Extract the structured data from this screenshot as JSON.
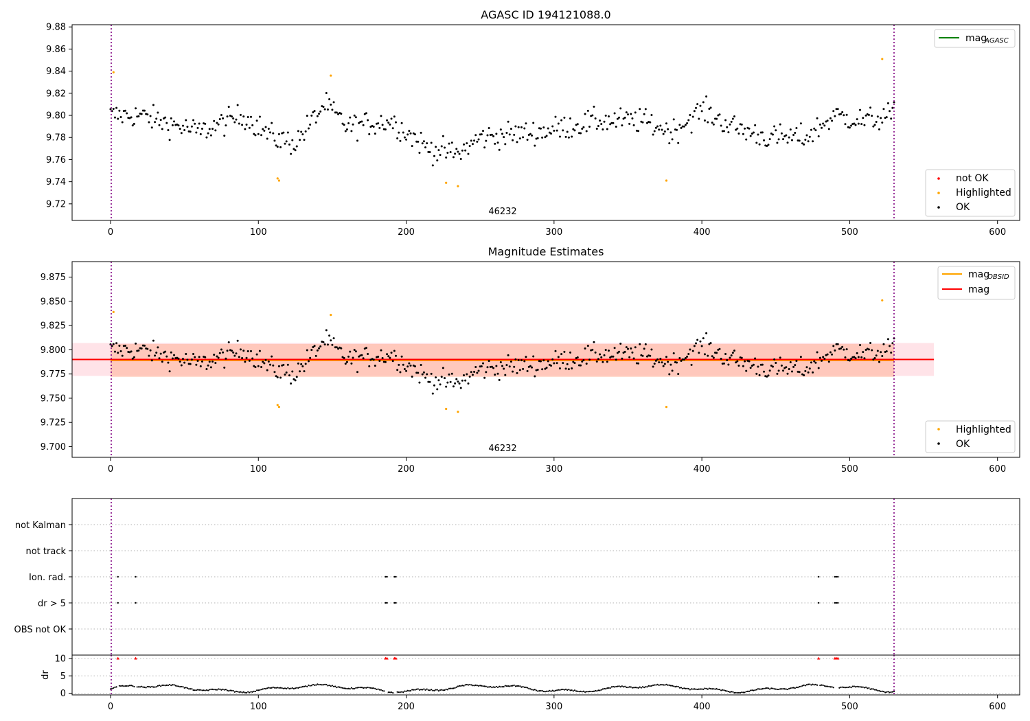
{
  "chart_data": [
    {
      "type": "scatter",
      "title": "AGASC ID 194121088.0",
      "annotation": "46232",
      "xlim": [
        -26,
        615
      ],
      "ylim": [
        9.705,
        9.882
      ],
      "xticks": [
        "0",
        "100",
        "200",
        "300",
        "400",
        "500",
        "600"
      ],
      "yticks": [
        "9.72",
        "9.74",
        "9.76",
        "9.78",
        "9.80",
        "9.82",
        "9.84",
        "9.86",
        "9.88"
      ],
      "vlines": [
        0,
        530
      ],
      "legend_top": {
        "placement": "top-right",
        "label": "mag",
        "sub": "AGASC",
        "color": "#008000"
      },
      "legend_bottom": {
        "placement": "bottom-right",
        "items": [
          {
            "label": "not OK",
            "color": "#ff0000"
          },
          {
            "label": "Highlighted",
            "color": "#ffa500"
          },
          {
            "label": "OK",
            "color": "#000000"
          }
        ]
      },
      "highlighted": [
        [
          2,
          9.839
        ],
        [
          113,
          9.743
        ],
        [
          114,
          9.741
        ],
        [
          149,
          9.836
        ],
        [
          227,
          9.739
        ],
        [
          235,
          9.736
        ],
        [
          376,
          9.741
        ],
        [
          522,
          9.851
        ]
      ]
    },
    {
      "type": "scatter",
      "title": "Magnitude Estimates",
      "annotation": "46232",
      "xlim": [
        -26,
        615
      ],
      "ylim": [
        9.689,
        9.891
      ],
      "xticks": [
        "0",
        "100",
        "200",
        "300",
        "400",
        "500",
        "600"
      ],
      "yticks": [
        "9.700",
        "9.725",
        "9.750",
        "9.775",
        "9.800",
        "9.825",
        "9.850",
        "9.875"
      ],
      "vlines": [
        0,
        530
      ],
      "mag": 9.79,
      "mag_obsid": 9.789,
      "band_mag": [
        9.773,
        9.807
      ],
      "band_obsid": [
        9.772,
        9.806
      ],
      "legend_top": {
        "placement": "top-right",
        "items": [
          {
            "label": "mag",
            "sub": "OBSID",
            "color": "#ffa500"
          },
          {
            "label": "mag",
            "sub": "",
            "color": "#ff0000"
          }
        ]
      },
      "legend_bottom": {
        "placement": "bottom-right",
        "items": [
          {
            "label": "Highlighted",
            "color": "#ffa500"
          },
          {
            "label": "OK",
            "color": "#000000"
          }
        ]
      },
      "highlighted": [
        [
          2,
          9.839
        ],
        [
          113,
          9.743
        ],
        [
          114,
          9.741
        ],
        [
          149,
          9.836
        ],
        [
          227,
          9.739
        ],
        [
          235,
          9.736
        ],
        [
          376,
          9.741
        ],
        [
          522,
          9.851
        ]
      ]
    },
    {
      "type": "scatter",
      "xlim": [
        -26,
        615
      ],
      "xticks": [
        "0",
        "100",
        "200",
        "300",
        "400",
        "500",
        "600"
      ],
      "flag_rows": [
        "not Kalman",
        "not track",
        "Ion. rad.",
        "dr > 5",
        "OBS not OK"
      ],
      "flag_points": {
        "Ion. rad.": [
          5,
          17,
          186,
          187,
          192,
          193,
          479,
          490,
          491,
          492
        ],
        "dr > 5": [
          5,
          17,
          186,
          187,
          192,
          193,
          479,
          490,
          491,
          492
        ]
      },
      "dr": {
        "ylabel": "dr",
        "yticks": [
          "0",
          "5",
          "10"
        ],
        "ylim": [
          -0.5,
          11
        ],
        "threshold": 10,
        "outliers": [
          5,
          17,
          186,
          187,
          192,
          193,
          479,
          490,
          491,
          492
        ]
      },
      "vlines": [
        0,
        530
      ]
    }
  ]
}
